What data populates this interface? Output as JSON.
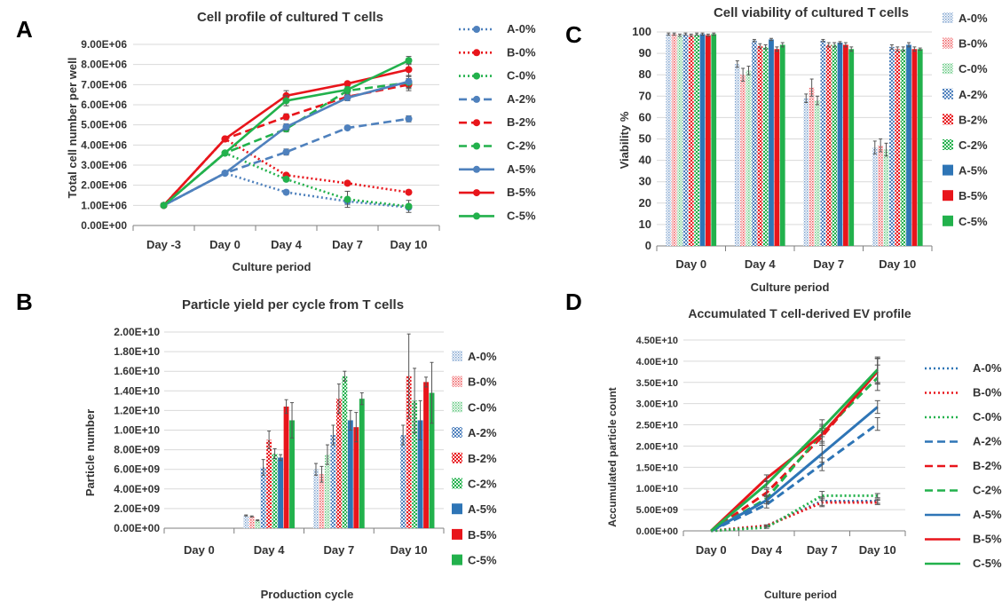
{
  "colors": {
    "A": "#4f81bd",
    "B": "#e8151b",
    "C": "#22b14c",
    "A5": "#2e75b6",
    "grid": "#d9d9d9",
    "axis": "#7f7f7f",
    "text": "#333333",
    "errorbar": "#555555"
  },
  "chart_data": [
    {
      "panel_label": "A",
      "type": "line",
      "title": "Cell profile of cultured T cells",
      "xlabel": "Culture period",
      "ylabel": "Total cell number per well",
      "categories": [
        "Day -3",
        "Day 0",
        "Day 4",
        "Day 7",
        "Day 10"
      ],
      "ylim": [
        0,
        9000000
      ],
      "ytick_labels": [
        "0.00E+00",
        "1.00E+06",
        "2.00E+06",
        "3.00E+06",
        "4.00E+06",
        "5.00E+06",
        "6.00E+06",
        "7.00E+06",
        "8.00E+06",
        "9.00E+06"
      ],
      "grid": true,
      "legend_position": "right",
      "series": [
        {
          "name": "A-0%",
          "color": "A",
          "dash": "dot",
          "values": [
            1000000,
            2600000,
            1650000,
            1200000,
            900000
          ],
          "errors": [
            0,
            0,
            100000,
            150000,
            100000
          ]
        },
        {
          "name": "B-0%",
          "color": "B",
          "dash": "dot",
          "values": [
            1000000,
            4300000,
            2500000,
            2100000,
            1650000
          ],
          "errors": [
            0,
            0,
            100000,
            100000,
            100000
          ]
        },
        {
          "name": "C-0%",
          "color": "C",
          "dash": "dot",
          "values": [
            1000000,
            3600000,
            2300000,
            1300000,
            950000
          ],
          "errors": [
            0,
            0,
            100000,
            400000,
            300000
          ]
        },
        {
          "name": "A-2%",
          "color": "A",
          "dash": "dash",
          "values": [
            1000000,
            2600000,
            3650000,
            4850000,
            5300000
          ],
          "errors": [
            0,
            0,
            150000,
            100000,
            150000
          ]
        },
        {
          "name": "B-2%",
          "color": "B",
          "dash": "dash",
          "values": [
            1000000,
            4300000,
            5400000,
            6400000,
            7000000
          ],
          "errors": [
            0,
            0,
            150000,
            150000,
            300000
          ]
        },
        {
          "name": "C-2%",
          "color": "C",
          "dash": "dash",
          "values": [
            1000000,
            3600000,
            4800000,
            6700000,
            7100000
          ],
          "errors": [
            0,
            0,
            150000,
            150000,
            300000
          ]
        },
        {
          "name": "A-5%",
          "color": "A",
          "dash": "solid",
          "values": [
            1000000,
            2600000,
            4900000,
            6350000,
            7150000
          ],
          "errors": [
            0,
            0,
            150000,
            150000,
            300000
          ]
        },
        {
          "name": "B-5%",
          "color": "B",
          "dash": "solid",
          "values": [
            1000000,
            4300000,
            6450000,
            7050000,
            7750000
          ],
          "errors": [
            0,
            0,
            250000,
            100000,
            300000
          ]
        },
        {
          "name": "C-5%",
          "color": "C",
          "dash": "solid",
          "values": [
            1000000,
            3600000,
            6200000,
            6750000,
            8200000
          ],
          "errors": [
            0,
            0,
            250000,
            150000,
            200000
          ]
        }
      ]
    },
    {
      "panel_label": "C",
      "type": "bar",
      "title": "Cell viability of cultured T cells",
      "xlabel": "Culture period",
      "ylabel": "Viability %",
      "categories": [
        "Day 0",
        "Day 4",
        "Day 7",
        "Day 10"
      ],
      "ylim": [
        0,
        100
      ],
      "ytick_labels": [
        "0",
        "10",
        "20",
        "30",
        "40",
        "50",
        "60",
        "70",
        "80",
        "90",
        "100"
      ],
      "grid": true,
      "legend_position": "right",
      "series": [
        {
          "name": "A-0%",
          "color": "A",
          "fill": "pattern",
          "values": [
            99,
            85,
            69,
            46
          ],
          "errors": [
            0.5,
            1.5,
            2,
            3
          ]
        },
        {
          "name": "B-0%",
          "color": "B",
          "fill": "pattern",
          "values": [
            99,
            80,
            74,
            47
          ],
          "errors": [
            0.5,
            3,
            4,
            3
          ]
        },
        {
          "name": "C-0%",
          "color": "C",
          "fill": "pattern",
          "values": [
            98.5,
            82,
            68,
            45
          ],
          "errors": [
            0.5,
            2,
            2,
            3
          ]
        },
        {
          "name": "A-2%",
          "color": "A",
          "fill": "checker",
          "values": [
            99,
            96,
            96,
            93
          ],
          "errors": [
            0.5,
            0.5,
            0.5,
            1
          ]
        },
        {
          "name": "B-2%",
          "color": "B",
          "fill": "checker",
          "values": [
            98.5,
            93.5,
            94,
            92
          ],
          "errors": [
            0.5,
            1,
            1,
            1
          ]
        },
        {
          "name": "C-2%",
          "color": "C",
          "fill": "checker",
          "values": [
            99,
            93,
            94,
            92
          ],
          "errors": [
            0.5,
            1,
            1,
            1
          ]
        },
        {
          "name": "A-5%",
          "color": "A5",
          "fill": "solid",
          "values": [
            99,
            96.5,
            95,
            94
          ],
          "errors": [
            0.5,
            0.5,
            0.5,
            1
          ]
        },
        {
          "name": "B-5%",
          "color": "B",
          "fill": "solid",
          "values": [
            98.5,
            92,
            94,
            92
          ],
          "errors": [
            0.5,
            1,
            1,
            1
          ]
        },
        {
          "name": "C-5%",
          "color": "C",
          "fill": "solid",
          "values": [
            99,
            94,
            92,
            92
          ],
          "errors": [
            0.5,
            1,
            1,
            0.5
          ]
        }
      ]
    },
    {
      "panel_label": "B",
      "type": "bar",
      "title": "Particle yield per cycle from T cells",
      "xlabel": "Production cycle",
      "ylabel": "Particle number",
      "categories": [
        "Day 0",
        "Day 4",
        "Day 7",
        "Day 10"
      ],
      "ylim": [
        0,
        20000000000
      ],
      "ytick_labels": [
        "0.00E+00",
        "2.00E+09",
        "4.00E+09",
        "6.00E+09",
        "8.00E+09",
        "1.00E+10",
        "1.20E+10",
        "1.40E+10",
        "1.60E+10",
        "1.80E+10",
        "2.00E+10"
      ],
      "grid": true,
      "legend_position": "right",
      "series": [
        {
          "name": "A-0%",
          "color": "A",
          "fill": "pattern",
          "values": [
            0,
            1300000000,
            6000000000,
            0
          ],
          "errors": [
            0,
            50000000,
            600000000,
            0
          ]
        },
        {
          "name": "B-0%",
          "color": "B",
          "fill": "pattern",
          "values": [
            0,
            1200000000,
            5500000000,
            0
          ],
          "errors": [
            0,
            50000000,
            800000000,
            0
          ]
        },
        {
          "name": "C-0%",
          "color": "C",
          "fill": "pattern",
          "values": [
            0,
            800000000,
            7500000000,
            0
          ],
          "errors": [
            0,
            50000000,
            1000000000,
            0
          ]
        },
        {
          "name": "A-2%",
          "color": "A",
          "fill": "checker",
          "values": [
            0,
            6200000000,
            9500000000,
            9500000000
          ],
          "errors": [
            0,
            800000000,
            1000000000,
            1000000000
          ]
        },
        {
          "name": "B-2%",
          "color": "B",
          "fill": "checker",
          "values": [
            0,
            9000000000,
            13200000000,
            15500000000
          ],
          "errors": [
            0,
            900000000,
            1500000000,
            4300000000
          ]
        },
        {
          "name": "C-2%",
          "color": "C",
          "fill": "checker",
          "values": [
            0,
            7600000000,
            15500000000,
            13000000000
          ],
          "errors": [
            0,
            500000000,
            500000000,
            3300000000
          ]
        },
        {
          "name": "A-5%",
          "color": "A5",
          "fill": "solid",
          "values": [
            0,
            7200000000,
            11000000000,
            11000000000
          ],
          "errors": [
            0,
            300000000,
            1000000000,
            2000000000
          ]
        },
        {
          "name": "B-5%",
          "color": "B",
          "fill": "solid",
          "values": [
            0,
            12400000000,
            10300000000,
            14900000000
          ],
          "errors": [
            0,
            700000000,
            1500000000,
            500000000
          ]
        },
        {
          "name": "C-5%",
          "color": "C",
          "fill": "solid",
          "values": [
            0,
            11000000000,
            13200000000,
            13800000000
          ],
          "errors": [
            0,
            1800000000,
            600000000,
            3100000000
          ]
        }
      ]
    },
    {
      "panel_label": "D",
      "type": "line",
      "title": "Accumulated T cell-derived EV profile",
      "xlabel": "Culture period",
      "ylabel": "Accumulated particle count",
      "categories": [
        "Day 0",
        "Day 4",
        "Day 7",
        "Day 10"
      ],
      "ylim": [
        0,
        45000000000
      ],
      "ytick_labels": [
        "0.00E+00",
        "5.00E+09",
        "1.00E+10",
        "1.50E+10",
        "2.00E+10",
        "2.50E+10",
        "3.00E+10",
        "3.50E+10",
        "4.00E+10",
        "4.50E+10"
      ],
      "grid": true,
      "legend_position": "right",
      "series": [
        {
          "name": "A-0%",
          "color": "A5",
          "dash": "dot",
          "values": [
            0,
            1200000000,
            7000000000,
            7000000000
          ],
          "errors": [
            0,
            200000000,
            1000000000,
            500000000
          ]
        },
        {
          "name": "B-0%",
          "color": "B",
          "dash": "dot",
          "values": [
            0,
            1200000000,
            6700000000,
            6700000000
          ],
          "errors": [
            0,
            200000000,
            1000000000,
            500000000
          ]
        },
        {
          "name": "C-0%",
          "color": "C",
          "dash": "dot",
          "values": [
            0,
            800000000,
            8300000000,
            8300000000
          ],
          "errors": [
            0,
            200000000,
            1000000000,
            500000000
          ]
        },
        {
          "name": "A-2%",
          "color": "A5",
          "dash": "dash",
          "values": [
            0,
            6200000000,
            15700000000,
            25200000000
          ],
          "errors": [
            0,
            800000000,
            1500000000,
            1500000000
          ]
        },
        {
          "name": "B-2%",
          "color": "B",
          "dash": "dash",
          "values": [
            0,
            9000000000,
            22200000000,
            37700000000
          ],
          "errors": [
            0,
            800000000,
            2000000000,
            3000000000
          ]
        },
        {
          "name": "C-2%",
          "color": "C",
          "dash": "dash",
          "values": [
            0,
            7600000000,
            23100000000,
            36100000000
          ],
          "errors": [
            0,
            800000000,
            2000000000,
            3000000000
          ]
        },
        {
          "name": "A-5%",
          "color": "A5",
          "dash": "solid",
          "values": [
            0,
            7200000000,
            18200000000,
            29200000000
          ],
          "errors": [
            0,
            800000000,
            2000000000,
            1500000000
          ]
        },
        {
          "name": "B-5%",
          "color": "B",
          "dash": "solid",
          "values": [
            0,
            12400000000,
            22700000000,
            37600000000
          ],
          "errors": [
            0,
            800000000,
            2000000000,
            3000000000
          ]
        },
        {
          "name": "C-5%",
          "color": "C",
          "dash": "solid",
          "values": [
            0,
            11000000000,
            24200000000,
            38000000000
          ],
          "errors": [
            0,
            800000000,
            2000000000,
            3000000000
          ]
        }
      ]
    }
  ]
}
